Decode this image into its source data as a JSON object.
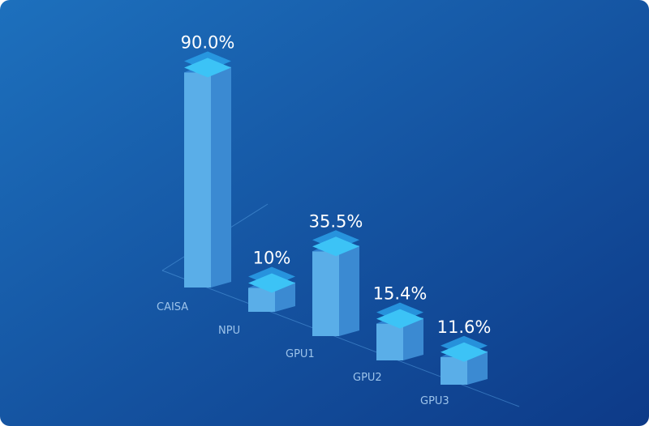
{
  "chart_data": {
    "type": "bar3d",
    "categories": [
      "CAISA",
      "NPU",
      "GPU1",
      "GPU2",
      "GPU3"
    ],
    "values": [
      90.0,
      10,
      35.5,
      15.4,
      11.6
    ],
    "value_labels": [
      "90.0%",
      "10%",
      "35.5%",
      "15.4%",
      "11.6%"
    ],
    "color": "#5aaee8"
  }
}
